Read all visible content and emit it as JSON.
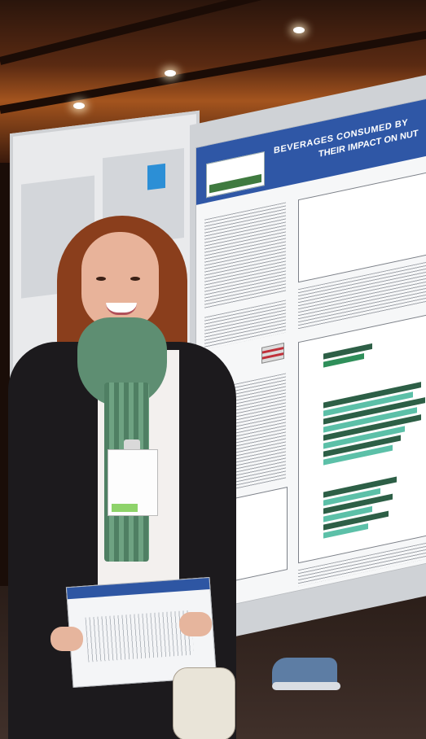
{
  "poster": {
    "title_line1": "BEVERAGES CONSUMED BY",
    "title_line2": "THEIR IMPACT ON NUT"
  },
  "colors": {
    "poster_header": "#2f57a6",
    "bar_green": "#2f8f5a",
    "bar_teal": "#5cc0a8",
    "scarf": "#5e8e72",
    "coat": "#1c1a1d",
    "hair": "#8a3e1c"
  }
}
